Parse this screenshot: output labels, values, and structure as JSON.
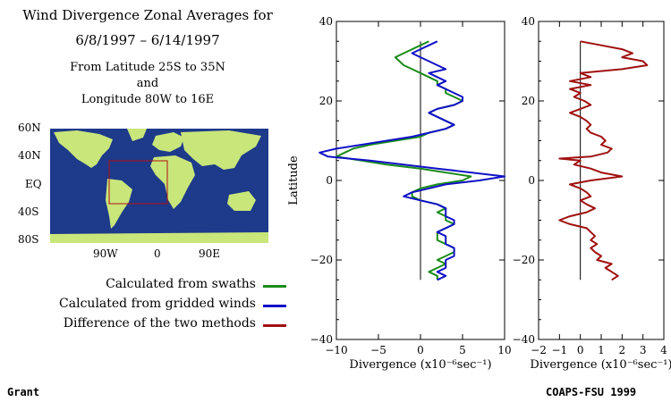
{
  "title": {
    "line1": "Wind Divergence Zonal Averages for",
    "line2": "6/8/1997 – 6/14/1997",
    "line3": "From Latitude 25S to 35N",
    "line4": "and",
    "line5": "Longitude 80W to 16E"
  },
  "map": {
    "lat_labels": [
      "60N",
      "40N",
      "EQ",
      "40S",
      "80S"
    ],
    "lon_labels": [
      "90W",
      "0",
      "90E"
    ],
    "ocean_color": "#1e3a8a",
    "land_color": "#c8e67a",
    "box_color": "#b01010"
  },
  "legend": [
    {
      "label": "Calculated from swaths",
      "color": "#1a8c1a"
    },
    {
      "label": "Calculated from gridded winds",
      "color": "#1010c8"
    },
    {
      "label": "Difference of the two methods",
      "color": "#a01010"
    }
  ],
  "footer": {
    "left": "Grant",
    "right": "COAPS-FSU 1999"
  },
  "chart_data": [
    {
      "type": "line",
      "xlabel": "Divergence (x10⁻⁶sec⁻¹)",
      "ylabel": "Latitude",
      "xlim": [
        -10,
        10
      ],
      "ylim": [
        -40,
        40
      ],
      "x_ticks": [
        -10,
        -5,
        0,
        5,
        10
      ],
      "y_ticks": [
        -40,
        -20,
        0,
        20,
        40
      ],
      "series": [
        {
          "name": "Calculated from swaths",
          "color": "#1a8c1a",
          "points": [
            [
              1,
              35
            ],
            [
              0,
              34
            ],
            [
              -2,
              32
            ],
            [
              -3,
              31
            ],
            [
              -2,
              29
            ],
            [
              -1,
              28
            ],
            [
              0,
              27
            ],
            [
              1,
              26
            ],
            [
              2,
              25
            ],
            [
              2,
              24
            ],
            [
              3,
              23
            ],
            [
              3,
              22
            ],
            [
              4,
              21
            ],
            [
              5,
              20
            ],
            [
              4,
              19
            ],
            [
              2,
              18
            ],
            [
              1,
              17
            ],
            [
              2,
              16
            ],
            [
              3,
              15
            ],
            [
              4,
              14
            ],
            [
              3,
              13
            ],
            [
              1,
              12
            ],
            [
              0,
              11
            ],
            [
              -3,
              10
            ],
            [
              -6,
              9
            ],
            [
              -8,
              8
            ],
            [
              -9,
              7
            ],
            [
              -10,
              6
            ],
            [
              -7,
              5
            ],
            [
              -4,
              4
            ],
            [
              0,
              3
            ],
            [
              3,
              2
            ],
            [
              6,
              1
            ],
            [
              5,
              0
            ],
            [
              2,
              -1
            ],
            [
              0,
              -2
            ],
            [
              -1,
              -3
            ],
            [
              -1,
              -4
            ],
            [
              0,
              -5
            ],
            [
              2,
              -6
            ],
            [
              3,
              -7
            ],
            [
              2,
              -8
            ],
            [
              3,
              -9
            ],
            [
              3,
              -10
            ],
            [
              4,
              -11
            ],
            [
              3,
              -12
            ],
            [
              2,
              -13
            ],
            [
              2,
              -14
            ],
            [
              2,
              -15
            ],
            [
              3,
              -16
            ],
            [
              4,
              -17
            ],
            [
              4,
              -18
            ],
            [
              3,
              -19
            ],
            [
              2,
              -20
            ],
            [
              3,
              -21
            ],
            [
              2,
              -22
            ],
            [
              1,
              -23
            ],
            [
              2,
              -24
            ],
            [
              2,
              -25
            ]
          ]
        },
        {
          "name": "Calculated from gridded winds",
          "color": "#1010c8",
          "points": [
            [
              2,
              35
            ],
            [
              1,
              34
            ],
            [
              0,
              33
            ],
            [
              -1,
              32
            ],
            [
              0,
              31
            ],
            [
              1,
              30
            ],
            [
              2,
              29
            ],
            [
              3,
              28
            ],
            [
              1,
              27
            ],
            [
              2,
              26
            ],
            [
              3,
              25
            ],
            [
              2,
              24
            ],
            [
              3,
              23
            ],
            [
              4,
              22
            ],
            [
              5,
              21
            ],
            [
              5,
              20
            ],
            [
              4,
              19
            ],
            [
              2,
              18
            ],
            [
              1,
              17
            ],
            [
              2,
              16
            ],
            [
              3,
              15
            ],
            [
              4,
              14
            ],
            [
              3,
              13
            ],
            [
              1,
              12
            ],
            [
              -1,
              11
            ],
            [
              -4,
              10
            ],
            [
              -7,
              9
            ],
            [
              -10,
              8
            ],
            [
              -12,
              7
            ],
            [
              -11,
              6
            ],
            [
              -6,
              5
            ],
            [
              -2,
              4
            ],
            [
              2,
              3
            ],
            [
              6,
              2
            ],
            [
              10,
              1
            ],
            [
              7,
              0
            ],
            [
              3,
              -1
            ],
            [
              1,
              -2
            ],
            [
              -1,
              -3
            ],
            [
              -2,
              -4
            ],
            [
              0,
              -5
            ],
            [
              2,
              -6
            ],
            [
              3,
              -7
            ],
            [
              3,
              -8
            ],
            [
              3,
              -9
            ],
            [
              4,
              -10
            ],
            [
              4,
              -11
            ],
            [
              3,
              -12
            ],
            [
              2,
              -13
            ],
            [
              3,
              -14
            ],
            [
              3,
              -15
            ],
            [
              3,
              -16
            ],
            [
              4,
              -17
            ],
            [
              4,
              -18
            ],
            [
              4,
              -19
            ],
            [
              3,
              -20
            ],
            [
              3,
              -21
            ],
            [
              3,
              -22
            ],
            [
              2,
              -23
            ],
            [
              3,
              -24
            ],
            [
              2,
              -25
            ]
          ]
        }
      ]
    },
    {
      "type": "line",
      "xlabel": "Divergence (x10⁻⁶sec⁻¹)",
      "ylabel": "",
      "xlim": [
        -2,
        4
      ],
      "ylim": [
        -40,
        40
      ],
      "x_ticks": [
        -2,
        -1,
        0,
        1,
        2,
        3,
        4
      ],
      "y_ticks": [
        -40,
        -20,
        0,
        20,
        40
      ],
      "series": [
        {
          "name": "Difference of the two methods",
          "color": "#a01010",
          "points": [
            [
              0,
              35
            ],
            [
              1,
              34
            ],
            [
              2,
              33
            ],
            [
              2.5,
              32
            ],
            [
              2,
              31
            ],
            [
              3,
              30
            ],
            [
              3.2,
              29
            ],
            [
              2,
              28
            ],
            [
              0,
              27
            ],
            [
              0.5,
              26
            ],
            [
              -0.5,
              25
            ],
            [
              0.5,
              24
            ],
            [
              -0.5,
              23
            ],
            [
              0,
              22
            ],
            [
              -0.3,
              21
            ],
            [
              0.2,
              20
            ],
            [
              0.5,
              19
            ],
            [
              0,
              18
            ],
            [
              -0.5,
              17
            ],
            [
              0,
              16
            ],
            [
              0.3,
              15
            ],
            [
              0.5,
              14
            ],
            [
              0.3,
              13
            ],
            [
              0.5,
              12
            ],
            [
              1,
              11
            ],
            [
              1.2,
              10
            ],
            [
              1,
              9
            ],
            [
              1.5,
              8
            ],
            [
              1.3,
              7
            ],
            [
              0.5,
              6
            ],
            [
              -1,
              5.5
            ],
            [
              0,
              5
            ],
            [
              -0.3,
              4
            ],
            [
              0.5,
              3
            ],
            [
              1,
              2
            ],
            [
              2,
              1
            ],
            [
              0.5,
              0
            ],
            [
              -0.5,
              -1
            ],
            [
              0,
              -2
            ],
            [
              0.3,
              -3
            ],
            [
              0.5,
              -4
            ],
            [
              0,
              -5
            ],
            [
              0.3,
              -6
            ],
            [
              0.7,
              -7
            ],
            [
              0.3,
              -8
            ],
            [
              -0.5,
              -9
            ],
            [
              -1,
              -10
            ],
            [
              -0.5,
              -11
            ],
            [
              0.3,
              -12
            ],
            [
              0.5,
              -13
            ],
            [
              0.7,
              -14
            ],
            [
              0.5,
              -15
            ],
            [
              0.8,
              -16
            ],
            [
              0.5,
              -17
            ],
            [
              0.7,
              -18
            ],
            [
              1,
              -19
            ],
            [
              0.8,
              -20
            ],
            [
              1.5,
              -21
            ],
            [
              1.2,
              -22
            ],
            [
              1.5,
              -23
            ],
            [
              1.8,
              -24
            ],
            [
              1.5,
              -25
            ]
          ]
        }
      ]
    }
  ]
}
